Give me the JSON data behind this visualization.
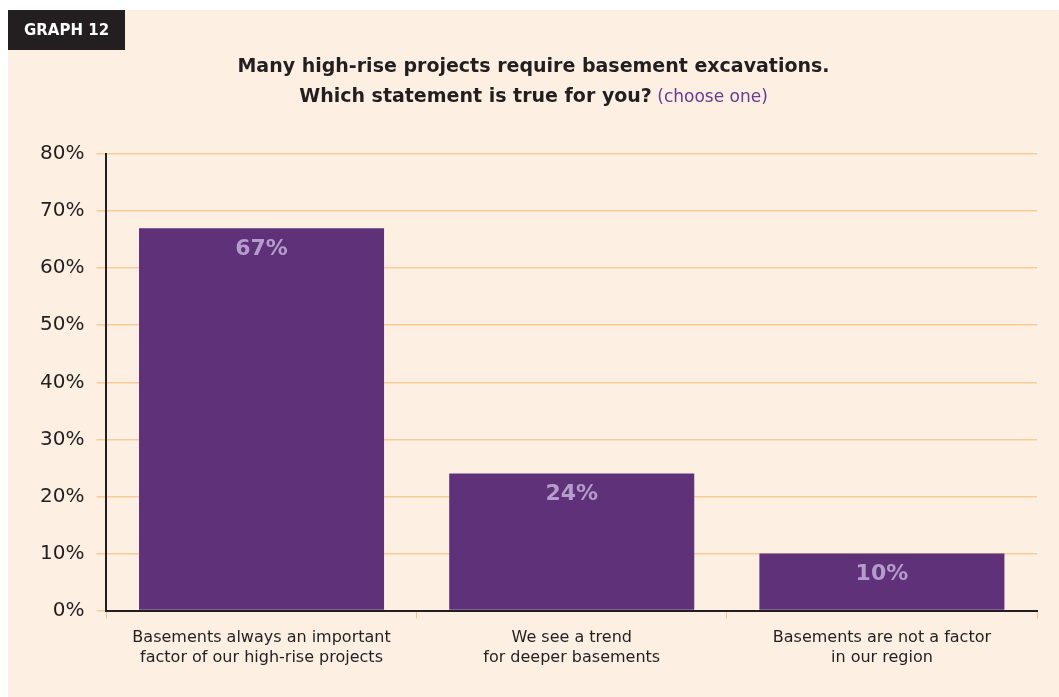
{
  "chart_data": {
    "type": "bar",
    "title": "Many high-rise projects require basement excavations.\nWhich statement is true for you?",
    "subtitle": "(choose one)",
    "annotations": [
      "GRAPH 12"
    ],
    "categories": [
      "Basements always an important\nfactor of our high-rise projects",
      "We see a trend\nfor deeper basements",
      "Basements are not a factor\nin our region"
    ],
    "values": [
      67,
      24,
      10
    ],
    "value_labels": [
      "67%",
      "24%",
      "10%"
    ],
    "color": "#5e3179",
    "ylim": [
      0,
      80
    ],
    "yticks": [
      {
        "value": 0,
        "label": "0%"
      },
      {
        "value": 10,
        "label": "10%"
      },
      {
        "value": 20,
        "label": "20%"
      },
      {
        "value": 30,
        "label": "30%"
      },
      {
        "value": 40,
        "label": "40%"
      },
      {
        "value": 50,
        "label": "50%"
      },
      {
        "value": 60,
        "label": "60%"
      },
      {
        "value": 70,
        "label": "70%"
      },
      {
        "value": 80,
        "label": "80%"
      }
    ],
    "grid": "y",
    "legend": false
  }
}
